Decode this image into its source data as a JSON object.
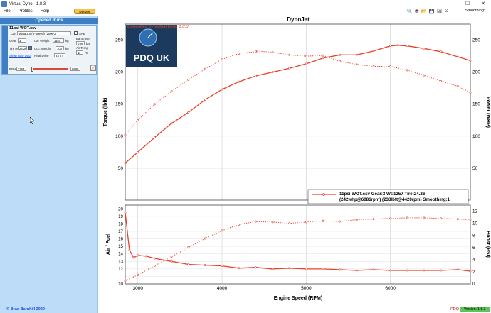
{
  "window": {
    "title": "Virtual Dyno - 1.8.3",
    "controls": [
      "–",
      "☐",
      "✕"
    ]
  },
  "menu": {
    "items": [
      "File",
      "Profiles",
      "Help"
    ],
    "donate": "Donate"
  },
  "sidebar": {
    "header": "Opened Runs",
    "run": {
      "title": "11psi WOT.csv",
      "car_label": "Car",
      "car_value": "Miata 2.0 (6-Speed) (2006-2",
      "sae_label": "SAE",
      "gear_label": "Gear",
      "gear_value": "3",
      "car_weight_label": "Car Weight",
      "car_weight_value": "1157",
      "car_weight_unit": "kg",
      "barometer_label": "Barometer",
      "barometer_value": "0.99",
      "barometer_unit": "bar",
      "tire_label": "Tire Ht",
      "tire_value": "24.26",
      "occ_weight_label": "Occ. Weight",
      "occ_weight_value": "100",
      "occ_weight_unit": "kg",
      "air_temp_label": "Air Temp",
      "air_temp_value": "11",
      "air_temp_unit": "°C",
      "show_raw_label": "Show Raw Data",
      "final_drive_label": "Final Drive",
      "final_drive_value": "3.727",
      "rpm_label": "RPM",
      "rpm_min": "2763",
      "rpm_max": "6980"
    },
    "copyright": "© Brad Barnhill 2020"
  },
  "toolbar": {
    "icons": [
      "zoom-icon",
      "filter-icon",
      "open-folder-icon",
      "save-icon",
      "image-icon",
      "gauge-icon"
    ],
    "smoothing_label": "Smoothing: 1"
  },
  "status": {
    "profile": "PDQ",
    "version": "Version: 1.8.3"
  },
  "chart_data": [
    {
      "type": "line",
      "title": "DynoJet",
      "watermark": "Generated by Virtual Dyno 1.8.3",
      "logo_text": "PDQ UK",
      "xlabel": "Engine Speed (RPM)",
      "ylabel_left": "Torque (lbft)",
      "ylabel_right": "Power (WHP)",
      "xlim": [
        2850,
        6950
      ],
      "ylim": [
        0,
        275
      ],
      "y_ticks": [
        50,
        100,
        150,
        200,
        250
      ],
      "legend": {
        "line1": "11psi WOT.csv Gear:3 Wt:1257 Tire:24.26",
        "line2": "(242whp@6086rpm) (233lbft@4420rpm) Smoothing:1",
        "position": "bottom-right"
      },
      "grid": true,
      "series": [
        {
          "name": "Power (WHP)",
          "style": "solid",
          "color": "#e8412b",
          "x": [
            2850,
            3000,
            3200,
            3400,
            3600,
            3800,
            4000,
            4200,
            4400,
            4600,
            4800,
            5000,
            5200,
            5400,
            5600,
            5800,
            6000,
            6086,
            6200,
            6400,
            6600,
            6800,
            6950
          ],
          "values": [
            58,
            75,
            98,
            120,
            137,
            157,
            173,
            185,
            194,
            200,
            206,
            213,
            222,
            227,
            227,
            233,
            241,
            242,
            241,
            237,
            232,
            224,
            218
          ]
        },
        {
          "name": "Torque (lbft)",
          "style": "dotted",
          "color": "#e8412b",
          "x": [
            2850,
            3000,
            3200,
            3400,
            3600,
            3800,
            4000,
            4200,
            4400,
            4420,
            4600,
            4800,
            5000,
            5200,
            5400,
            5600,
            5800,
            6000,
            6200,
            6400,
            6600,
            6800,
            6950
          ],
          "values": [
            102,
            125,
            150,
            170,
            188,
            205,
            220,
            229,
            232,
            233,
            231,
            227,
            225,
            226,
            217,
            212,
            209,
            209,
            203,
            195,
            186,
            178,
            168
          ]
        }
      ]
    },
    {
      "type": "line",
      "xlabel": "Engine Speed (RPM)",
      "ylabel_left": "Air / Fuel",
      "ylabel_right": "Boost (PSI)",
      "xlim": [
        2850,
        6950
      ],
      "ylim_left": [
        10,
        20.5
      ],
      "ylim_right": [
        0,
        13
      ],
      "x_ticks": [
        3000,
        4000,
        5000,
        6000
      ],
      "y_ticks_left": [
        10,
        11,
        12,
        13,
        14,
        15,
        16,
        17,
        18,
        19,
        20
      ],
      "y_ticks_right": [
        0,
        2,
        4,
        6,
        8,
        10,
        12
      ],
      "grid": true,
      "series": [
        {
          "name": "Air / Fuel",
          "style": "solid",
          "color": "#e8412b",
          "x": [
            2850,
            2900,
            2950,
            3000,
            3100,
            3200,
            3400,
            3600,
            3800,
            4000,
            4200,
            4400,
            4600,
            4800,
            5000,
            5200,
            5400,
            5600,
            5800,
            6000,
            6200,
            6400,
            6600,
            6800,
            6950
          ],
          "values": [
            19.5,
            14.5,
            13.5,
            13.8,
            13.7,
            13.4,
            13.0,
            12.6,
            12.5,
            12.4,
            12.1,
            12.2,
            12.0,
            12.1,
            12.0,
            12.0,
            11.9,
            11.8,
            11.9,
            11.8,
            11.8,
            11.8,
            11.8,
            11.9,
            11.7
          ]
        },
        {
          "name": "Boost (PSI)",
          "style": "dotted",
          "color": "#e8412b",
          "x": [
            2850,
            3000,
            3200,
            3400,
            3600,
            3800,
            4000,
            4200,
            4400,
            4600,
            4800,
            5000,
            5200,
            5400,
            5600,
            5800,
            6000,
            6200,
            6400,
            6600,
            6800,
            6950
          ],
          "values": [
            0.5,
            1.5,
            3.0,
            4.5,
            6.0,
            7.5,
            8.8,
            9.8,
            10.3,
            10.2,
            10.0,
            10.2,
            10.4,
            10.3,
            10.6,
            10.7,
            10.8,
            10.9,
            10.9,
            10.8,
            10.7,
            10.6
          ]
        }
      ]
    }
  ]
}
